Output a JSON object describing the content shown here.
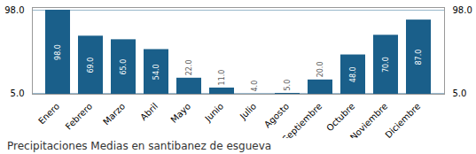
{
  "chart_data": {
    "type": "bar",
    "title": "Precipitaciones Medias en santibanez de esgueva",
    "categories": [
      "Enero",
      "Febrero",
      "Marzo",
      "Abril",
      "Mayo",
      "Junio",
      "Julio",
      "Agosto",
      "Septiembre",
      "Octubre",
      "Noviembre",
      "Diciembre"
    ],
    "values": [
      98.0,
      69.0,
      65.0,
      54.0,
      22.0,
      11.0,
      4.0,
      5.0,
      20.0,
      48.0,
      70.0,
      87.0
    ],
    "value_labels": [
      "98.0",
      "69.0",
      "65.0",
      "54.0",
      "22.0",
      "11.0",
      "4.0",
      "5.0",
      "20.0",
      "48.0",
      "70.0",
      "87.0"
    ],
    "color": "#1a5f8a",
    "ylim": [
      4,
      101
    ],
    "yticks": [
      {
        "value": 5,
        "label": "5.0"
      },
      {
        "value": 98,
        "label": "98.0"
      }
    ],
    "grid": true,
    "data_labels": true
  }
}
